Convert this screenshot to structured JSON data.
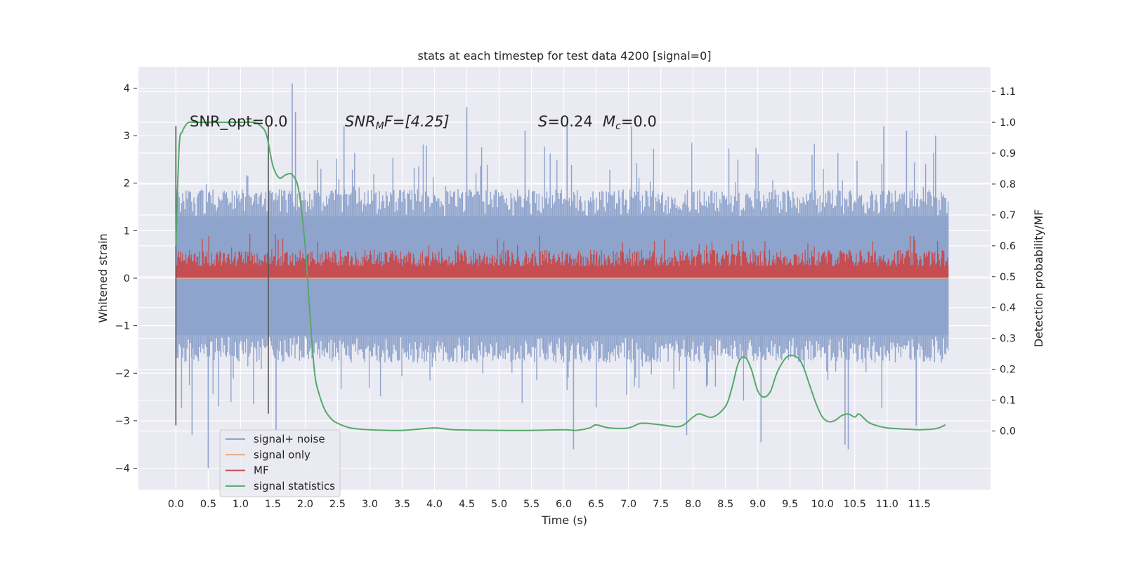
{
  "chart_data": {
    "type": "line",
    "title": "stats at each timestep for test data 4200 [signal=0]",
    "xlabel": "Time (s)",
    "ylabel": "Whitened strain",
    "y2label": "Detection probability/MF",
    "xlim": [
      -0.58,
      12.6
    ],
    "ylim": [
      -4.45,
      4.45
    ],
    "y2lim": [
      -0.19,
      1.18
    ],
    "x_ticks": [
      "0.0",
      "0.5",
      "1.0",
      "1.5",
      "2.0",
      "2.5",
      "3.0",
      "3.5",
      "4.0",
      "4.5",
      "5.0",
      "5.5",
      "6.0",
      "6.5",
      "7.0",
      "7.5",
      "8.0",
      "8.5",
      "9.0",
      "9.5",
      "10.0",
      "10.5",
      "11.0",
      "11.5"
    ],
    "y_ticks": [
      "4",
      "3",
      "2",
      "1",
      "0",
      "−1",
      "−2",
      "−3",
      "−4"
    ],
    "y2_ticks": [
      "1.1",
      "1.0",
      "0.9",
      "0.8",
      "0.7",
      "0.6",
      "0.5",
      "0.4",
      "0.3",
      "0.2",
      "0.1",
      "0.0"
    ],
    "grid": true,
    "legend_position": "lower-left",
    "annotations": {
      "snr_opt": "SNR_opt=0.0",
      "snr_mf_main": "SNR",
      "snr_mf_sub": "M",
      "snr_mf_rest": "F=[4.25]",
      "s_label": "S",
      "s_value": "=0.24",
      "mc_label": "M",
      "mc_sub": "c",
      "mc_value": "=0.0"
    },
    "series": [
      {
        "name": "signal+ noise",
        "color": "#8fa4cc",
        "axis": "left",
        "x_range": [
          0.0,
          11.95
        ],
        "band": {
          "typical_low": -1.8,
          "typical_high": 1.9,
          "dense_low": -1.2,
          "dense_high": 1.3
        },
        "extremes": [
          [
            0.25,
            -3.3
          ],
          [
            0.5,
            -4.0
          ],
          [
            1.55,
            -3.2
          ],
          [
            1.8,
            4.1
          ],
          [
            1.85,
            3.5
          ],
          [
            2.6,
            3.2
          ],
          [
            4.5,
            3.6
          ],
          [
            5.4,
            3.1
          ],
          [
            6.05,
            3.3
          ],
          [
            6.15,
            -3.6
          ],
          [
            7.9,
            -3.3
          ],
          [
            9.05,
            -3.45
          ],
          [
            10.35,
            -3.5
          ],
          [
            10.4,
            -3.6
          ],
          [
            11.45,
            -3.1
          ],
          [
            11.3,
            3.1
          ],
          [
            11.75,
            3.0
          ],
          [
            7.05,
            3.2
          ],
          [
            10.95,
            3.2
          ]
        ]
      },
      {
        "name": "signal only",
        "color": "#e8a987",
        "axis": "left",
        "x": [
          0.0,
          11.95
        ],
        "y": [
          0.0,
          0.0
        ]
      },
      {
        "name": "MF",
        "color": "#c44e52",
        "axis": "right",
        "x_range": [
          0.0,
          11.95
        ],
        "band": {
          "low": 0.5,
          "typical_high": 0.59,
          "spike_high": 0.64
        }
      },
      {
        "name": "signal statistics",
        "color": "#55a868",
        "axis": "right",
        "x": [
          0.0,
          0.05,
          0.1,
          0.15,
          0.2,
          0.3,
          0.5,
          0.8,
          1.0,
          1.2,
          1.3,
          1.4,
          1.5,
          1.6,
          1.7,
          1.8,
          1.9,
          2.0,
          2.05,
          2.1,
          2.15,
          2.2,
          2.3,
          2.4,
          2.5,
          2.7,
          3.0,
          3.5,
          4.0,
          4.3,
          5.0,
          5.5,
          6.0,
          6.2,
          6.4,
          6.5,
          6.7,
          7.0,
          7.2,
          7.5,
          7.8,
          8.0,
          8.1,
          8.3,
          8.5,
          8.6,
          8.7,
          8.8,
          8.9,
          9.0,
          9.1,
          9.2,
          9.3,
          9.45,
          9.6,
          9.7,
          9.8,
          9.9,
          10.0,
          10.1,
          10.2,
          10.3,
          10.4,
          10.5,
          10.55,
          10.6,
          10.7,
          10.8,
          11.0,
          11.3,
          11.5,
          11.7,
          11.8,
          11.9
        ],
        "y": [
          0.6,
          0.92,
          0.97,
          0.99,
          1.0,
          1.0,
          1.0,
          1.0,
          1.0,
          1.0,
          0.99,
          0.96,
          0.86,
          0.82,
          0.83,
          0.83,
          0.78,
          0.6,
          0.45,
          0.3,
          0.18,
          0.13,
          0.07,
          0.04,
          0.025,
          0.01,
          0.004,
          0.002,
          0.01,
          0.004,
          0.002,
          0.002,
          0.004,
          0.002,
          0.01,
          0.02,
          0.01,
          0.01,
          0.025,
          0.02,
          0.015,
          0.045,
          0.055,
          0.045,
          0.08,
          0.14,
          0.22,
          0.24,
          0.2,
          0.13,
          0.11,
          0.13,
          0.19,
          0.24,
          0.24,
          0.21,
          0.15,
          0.09,
          0.045,
          0.03,
          0.035,
          0.05,
          0.055,
          0.045,
          0.055,
          0.05,
          0.03,
          0.02,
          0.01,
          0.006,
          0.004,
          0.006,
          0.01,
          0.02
        ]
      }
    ],
    "markers": {
      "vertical_lines": [
        {
          "x": 0.0,
          "y_low": -3.1,
          "y_high": 3.2
        },
        {
          "x": 1.43,
          "y_low": -2.85,
          "y_high": 3.2
        }
      ]
    }
  }
}
